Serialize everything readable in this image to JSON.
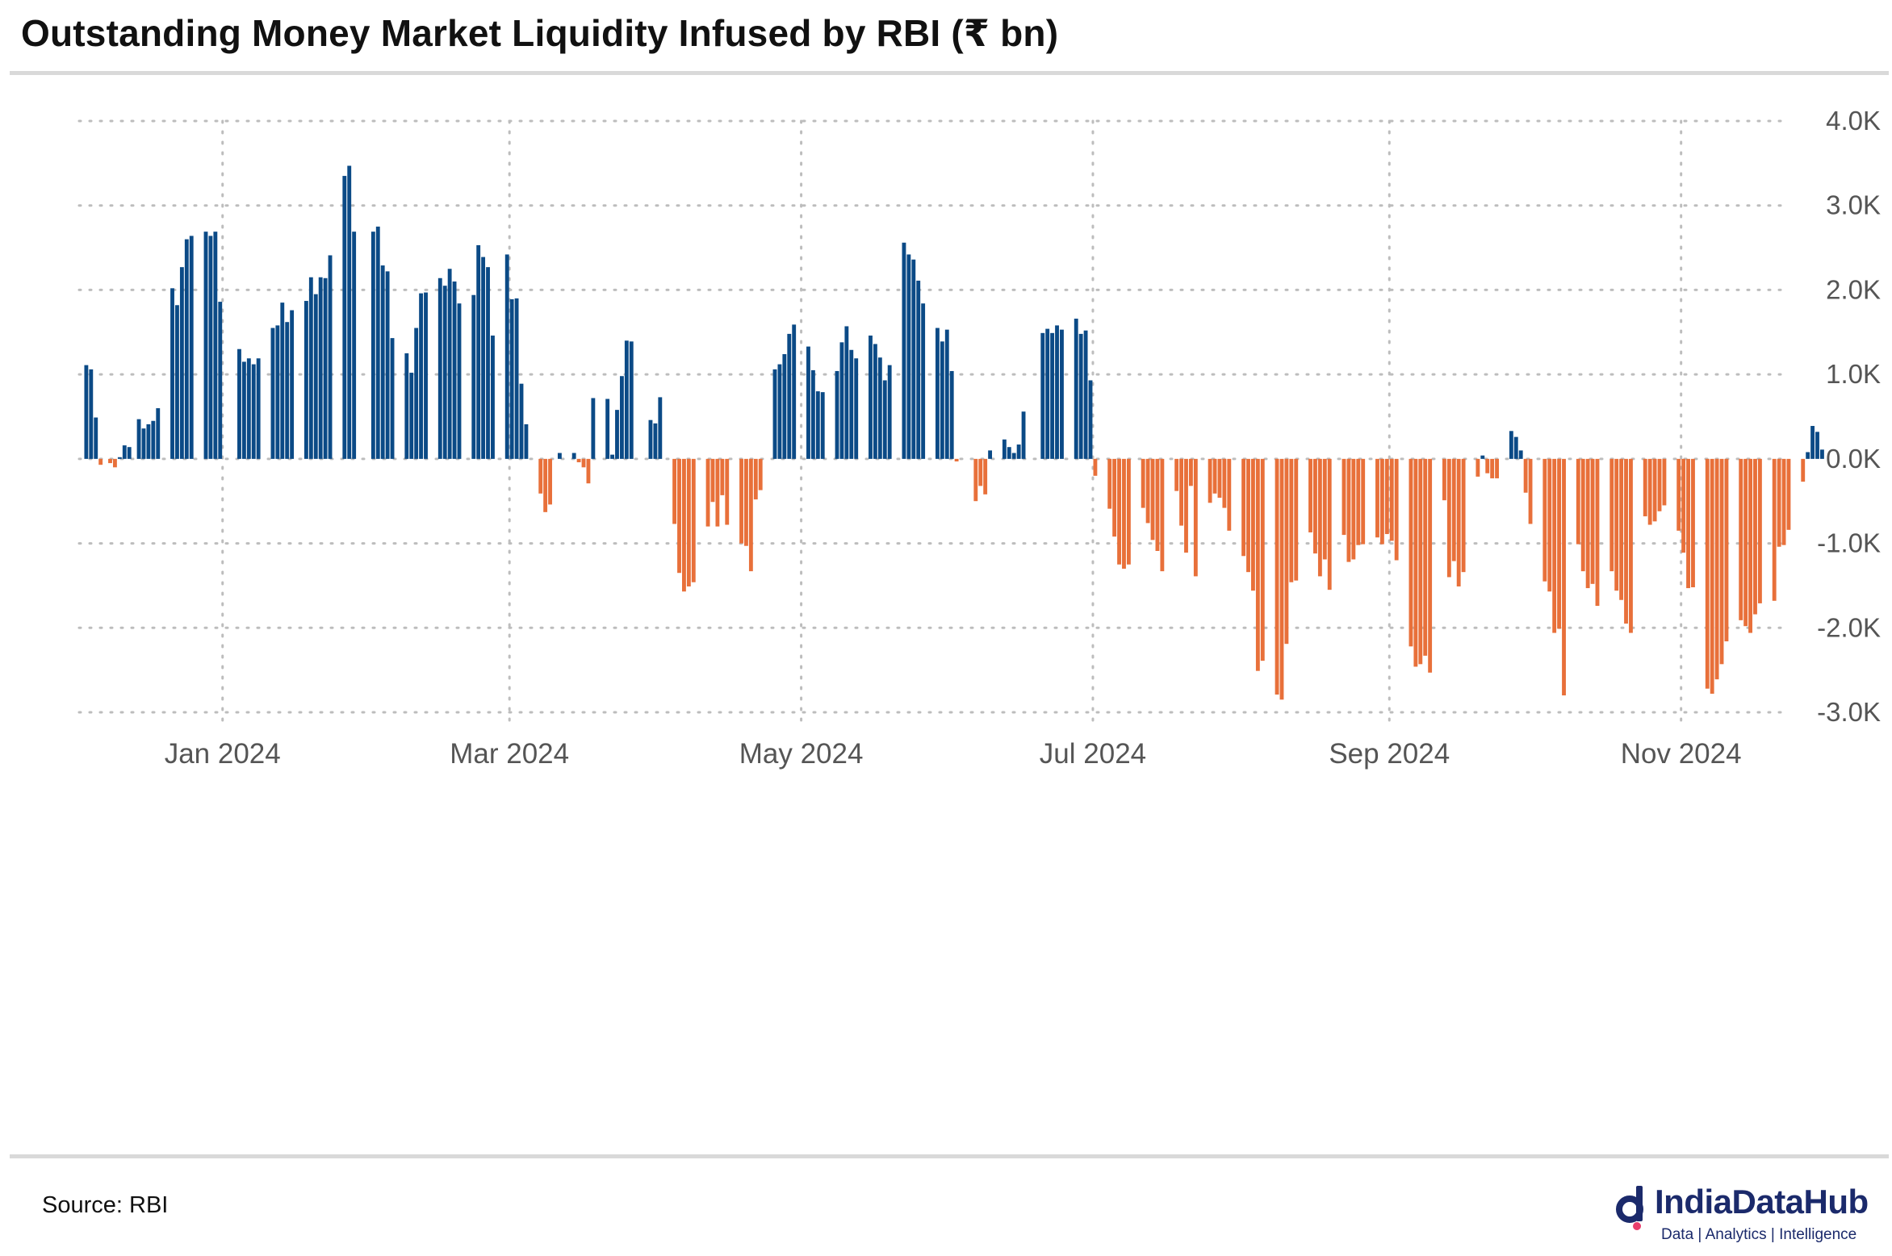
{
  "title": "Outstanding Money Market Liquidity Infused by RBI (₹ bn)",
  "source": "Source: RBI",
  "logo": {
    "name": "IndiaDataHub",
    "tagline": "Data | Analytics | Intelligence"
  },
  "colors": {
    "positive": "#0b4a86",
    "negative": "#e8703a",
    "grid": "#bdbdbd",
    "text": "#555555",
    "brand": "#1b2a6b"
  },
  "chart_data": {
    "type": "bar",
    "title": "Outstanding Money Market Liquidity Infused by RBI (₹ bn)",
    "xlabel": "",
    "ylabel": "",
    "ylim": [
      -3000,
      4000
    ],
    "yticks": [
      4000,
      3000,
      2000,
      1000,
      0,
      -1000,
      -2000,
      -3000
    ],
    "ytick_labels": [
      "4.0K",
      "3.0K",
      "2.0K",
      "1.0K",
      "0.0K",
      "-1.0K",
      "-2.0K",
      "-3.0K"
    ],
    "xlim": [
      "2023-12-02",
      "2024-11-23"
    ],
    "xticks": [
      "2024-01-01",
      "2024-03-01",
      "2024-05-01",
      "2024-07-01",
      "2024-09-01",
      "2024-11-01"
    ],
    "xtick_labels": [
      "Jan 2024",
      "Mar 2024",
      "May 2024",
      "Jul 2024",
      "Sep 2024",
      "Nov 2024"
    ],
    "grid": true,
    "positive_color": "#0b4a86",
    "negative_color": "#e8703a",
    "series": [
      {
        "values": [
          [
            1,
            1110
          ],
          [
            2,
            1060
          ],
          [
            3,
            490
          ],
          [
            4,
            -70
          ],
          [
            6,
            -50
          ],
          [
            7,
            -100
          ],
          [
            8,
            20
          ],
          [
            9,
            160
          ],
          [
            10,
            140
          ],
          [
            12,
            470
          ],
          [
            13,
            360
          ],
          [
            14,
            410
          ],
          [
            15,
            450
          ],
          [
            16,
            600
          ],
          [
            19,
            2020
          ],
          [
            20,
            1820
          ],
          [
            21,
            2270
          ],
          [
            22,
            2600
          ],
          [
            23,
            2640
          ],
          [
            26,
            2690
          ],
          [
            27,
            2640
          ],
          [
            28,
            2690
          ],
          [
            29,
            1860
          ],
          [
            33,
            1300
          ],
          [
            34,
            1150
          ],
          [
            35,
            1190
          ],
          [
            36,
            1120
          ],
          [
            37,
            1190
          ],
          [
            40,
            1550
          ],
          [
            41,
            1580
          ],
          [
            42,
            1850
          ],
          [
            43,
            1620
          ],
          [
            44,
            1760
          ],
          [
            47,
            1870
          ],
          [
            48,
            2150
          ],
          [
            49,
            1950
          ],
          [
            50,
            2150
          ],
          [
            51,
            2140
          ],
          [
            52,
            2410
          ],
          [
            55,
            3350
          ],
          [
            56,
            3470
          ],
          [
            57,
            2690
          ],
          [
            61,
            2690
          ],
          [
            62,
            2750
          ],
          [
            63,
            2290
          ],
          [
            64,
            2220
          ],
          [
            65,
            1430
          ],
          [
            68,
            1250
          ],
          [
            69,
            1020
          ],
          [
            70,
            1550
          ],
          [
            71,
            1960
          ],
          [
            72,
            1970
          ],
          [
            75,
            2140
          ],
          [
            76,
            2050
          ],
          [
            77,
            2250
          ],
          [
            78,
            2100
          ],
          [
            79,
            1840
          ],
          [
            82,
            1940
          ],
          [
            83,
            2530
          ],
          [
            84,
            2390
          ],
          [
            85,
            2270
          ],
          [
            86,
            1460
          ],
          [
            89,
            2420
          ],
          [
            90,
            1890
          ],
          [
            91,
            1900
          ],
          [
            92,
            890
          ],
          [
            93,
            410
          ],
          [
            96,
            -410
          ],
          [
            97,
            -630
          ],
          [
            98,
            -540
          ],
          [
            100,
            70
          ],
          [
            103,
            70
          ],
          [
            104,
            -40
          ],
          [
            105,
            -100
          ],
          [
            106,
            -290
          ],
          [
            107,
            720
          ],
          [
            110,
            710
          ],
          [
            111,
            50
          ],
          [
            112,
            580
          ],
          [
            113,
            980
          ],
          [
            114,
            1400
          ],
          [
            115,
            1390
          ],
          [
            119,
            460
          ],
          [
            120,
            420
          ],
          [
            121,
            730
          ],
          [
            124,
            -770
          ],
          [
            125,
            -1350
          ],
          [
            126,
            -1570
          ],
          [
            127,
            -1510
          ],
          [
            128,
            -1460
          ],
          [
            131,
            -800
          ],
          [
            132,
            -510
          ],
          [
            133,
            -800
          ],
          [
            134,
            -430
          ],
          [
            135,
            -780
          ],
          [
            138,
            -1000
          ],
          [
            139,
            -1030
          ],
          [
            140,
            -1330
          ],
          [
            141,
            -480
          ],
          [
            142,
            -370
          ],
          [
            145,
            1060
          ],
          [
            146,
            1120
          ],
          [
            147,
            1240
          ],
          [
            148,
            1480
          ],
          [
            149,
            1590
          ],
          [
            152,
            1330
          ],
          [
            153,
            1050
          ],
          [
            154,
            800
          ],
          [
            155,
            790
          ],
          [
            158,
            1040
          ],
          [
            159,
            1380
          ],
          [
            160,
            1570
          ],
          [
            161,
            1290
          ],
          [
            162,
            1190
          ],
          [
            165,
            1460
          ],
          [
            166,
            1360
          ],
          [
            167,
            1200
          ],
          [
            168,
            930
          ],
          [
            169,
            1110
          ],
          [
            172,
            2560
          ],
          [
            173,
            2420
          ],
          [
            174,
            2360
          ],
          [
            175,
            2110
          ],
          [
            176,
            1840
          ],
          [
            179,
            1550
          ],
          [
            180,
            1390
          ],
          [
            181,
            1530
          ],
          [
            182,
            1040
          ],
          [
            183,
            -30
          ],
          [
            187,
            -500
          ],
          [
            188,
            -320
          ],
          [
            189,
            -420
          ],
          [
            190,
            100
          ],
          [
            193,
            230
          ],
          [
            194,
            140
          ],
          [
            195,
            70
          ],
          [
            196,
            170
          ],
          [
            197,
            560
          ],
          [
            201,
            1490
          ],
          [
            202,
            1540
          ],
          [
            203,
            1490
          ],
          [
            204,
            1580
          ],
          [
            205,
            1530
          ],
          [
            208,
            1660
          ],
          [
            209,
            1480
          ],
          [
            210,
            1520
          ],
          [
            211,
            930
          ],
          [
            212,
            -200
          ],
          [
            215,
            -590
          ],
          [
            216,
            -920
          ],
          [
            217,
            -1250
          ],
          [
            218,
            -1300
          ],
          [
            219,
            -1250
          ],
          [
            222,
            -580
          ],
          [
            223,
            -760
          ],
          [
            224,
            -960
          ],
          [
            225,
            -1090
          ],
          [
            226,
            -1330
          ],
          [
            229,
            -380
          ],
          [
            230,
            -790
          ],
          [
            231,
            -1110
          ],
          [
            232,
            -320
          ],
          [
            233,
            -1390
          ],
          [
            236,
            -520
          ],
          [
            237,
            -410
          ],
          [
            238,
            -460
          ],
          [
            239,
            -580
          ],
          [
            240,
            -850
          ],
          [
            243,
            -1150
          ],
          [
            244,
            -1340
          ],
          [
            245,
            -1560
          ],
          [
            246,
            -2510
          ],
          [
            247,
            -2390
          ],
          [
            250,
            -2790
          ],
          [
            251,
            -2850
          ],
          [
            252,
            -2190
          ],
          [
            253,
            -1460
          ],
          [
            254,
            -1440
          ],
          [
            257,
            -870
          ],
          [
            258,
            -1120
          ],
          [
            259,
            -1390
          ],
          [
            260,
            -1190
          ],
          [
            261,
            -1550
          ],
          [
            264,
            -900
          ],
          [
            265,
            -1220
          ],
          [
            266,
            -1190
          ],
          [
            267,
            -1020
          ],
          [
            268,
            -1010
          ],
          [
            271,
            -930
          ],
          [
            272,
            -1010
          ],
          [
            273,
            -890
          ],
          [
            274,
            -970
          ],
          [
            275,
            -1200
          ],
          [
            278,
            -2220
          ],
          [
            279,
            -2460
          ],
          [
            280,
            -2430
          ],
          [
            281,
            -2330
          ],
          [
            282,
            -2530
          ],
          [
            285,
            -490
          ],
          [
            286,
            -1400
          ],
          [
            287,
            -1210
          ],
          [
            288,
            -1510
          ],
          [
            289,
            -1340
          ],
          [
            292,
            -210
          ],
          [
            293,
            40
          ],
          [
            294,
            -170
          ],
          [
            295,
            -230
          ],
          [
            296,
            -230
          ],
          [
            299,
            330
          ],
          [
            300,
            260
          ],
          [
            301,
            100
          ],
          [
            302,
            -400
          ],
          [
            303,
            -770
          ],
          [
            306,
            -1450
          ],
          [
            307,
            -1570
          ],
          [
            308,
            -2060
          ],
          [
            309,
            -2010
          ],
          [
            310,
            -2800
          ],
          [
            313,
            -1010
          ],
          [
            314,
            -1330
          ],
          [
            315,
            -1530
          ],
          [
            316,
            -1480
          ],
          [
            317,
            -1740
          ],
          [
            320,
            -1330
          ],
          [
            321,
            -1560
          ],
          [
            322,
            -1670
          ],
          [
            323,
            -1950
          ],
          [
            324,
            -2060
          ],
          [
            327,
            -680
          ],
          [
            328,
            -780
          ],
          [
            329,
            -740
          ],
          [
            330,
            -620
          ],
          [
            331,
            -550
          ],
          [
            334,
            -850
          ],
          [
            335,
            -1110
          ],
          [
            336,
            -1530
          ],
          [
            337,
            -1520
          ],
          [
            340,
            -2720
          ],
          [
            341,
            -2780
          ],
          [
            342,
            -2610
          ],
          [
            343,
            -2430
          ],
          [
            344,
            -2160
          ],
          [
            347,
            -1910
          ],
          [
            348,
            -1980
          ],
          [
            349,
            -2060
          ],
          [
            350,
            -1840
          ],
          [
            351,
            -1710
          ],
          [
            354,
            -1680
          ],
          [
            355,
            -1040
          ],
          [
            356,
            -1020
          ],
          [
            357,
            -840
          ],
          [
            360,
            -270
          ],
          [
            361,
            80
          ],
          [
            362,
            390
          ],
          [
            363,
            320
          ],
          [
            364,
            110
          ]
        ]
      }
    ]
  }
}
